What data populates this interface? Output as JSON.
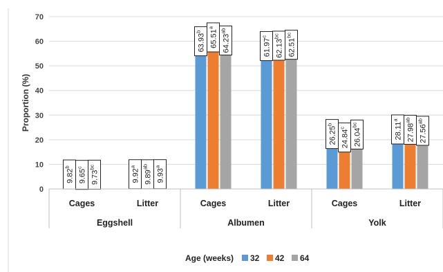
{
  "chart_data": {
    "type": "bar",
    "ylabel": "Proportion (%)",
    "ylim": [
      0,
      70
    ],
    "yticks": [
      0,
      10,
      20,
      30,
      40,
      50,
      60,
      70
    ],
    "grid": true,
    "legend_position": "bottom",
    "legend_title": "Age (weeks)",
    "groups": [
      "Eggshell",
      "Albumen",
      "Yolk"
    ],
    "subcategories": [
      "Cages",
      "Litter"
    ],
    "categories": [
      {
        "group": "Eggshell",
        "name": "Cages"
      },
      {
        "group": "Eggshell",
        "name": "Litter"
      },
      {
        "group": "Albumen",
        "name": "Cages"
      },
      {
        "group": "Albumen",
        "name": "Litter"
      },
      {
        "group": "Yolk",
        "name": "Cages"
      },
      {
        "group": "Yolk",
        "name": "Litter"
      }
    ],
    "series": [
      {
        "name": "32",
        "color": "#5b9bd5",
        "values": [
          9.82,
          9.92,
          63.93,
          61.97,
          26.25,
          28.11
        ],
        "labels": [
          {
            "v": "9.82",
            "s": "b"
          },
          {
            "v": "9.92",
            "s": "a"
          },
          {
            "v": "63.93",
            "s": "b"
          },
          {
            "v": "61.97",
            "s": "c"
          },
          {
            "v": "26.25",
            "s": "b"
          },
          {
            "v": "28.11",
            "s": "a"
          }
        ]
      },
      {
        "name": "42",
        "color": "#ed7d31",
        "values": [
          9.65,
          9.89,
          65.51,
          62.13,
          24.84,
          27.98
        ],
        "labels": [
          {
            "v": "9.65",
            "s": "c"
          },
          {
            "v": "9.89",
            "s": "ab"
          },
          {
            "v": "65.51",
            "s": "a"
          },
          {
            "v": "62.13",
            "s": "bc"
          },
          {
            "v": "24.84",
            "s": "c"
          },
          {
            "v": "27.98",
            "s": "ab"
          }
        ]
      },
      {
        "name": "64",
        "color": "#a5a5a5",
        "values": [
          9.73,
          9.93,
          64.23,
          62.51,
          26.04,
          27.56
        ],
        "labels": [
          {
            "v": "9.73",
            "s": "bc"
          },
          {
            "v": "9.93",
            "s": "a"
          },
          {
            "v": "64.23",
            "s": "ab"
          },
          {
            "v": "62.51",
            "s": "bc"
          },
          {
            "v": "26.04",
            "s": "bc"
          },
          {
            "v": "27.56",
            "s": "ab"
          }
        ]
      }
    ]
  }
}
